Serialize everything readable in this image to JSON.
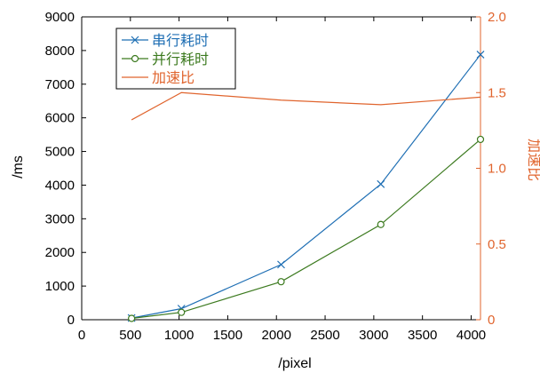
{
  "chart_data": {
    "type": "line",
    "title": "",
    "xlabel": "/pixel",
    "ylabel_left": "/ms",
    "ylabel_right": "加速比",
    "x_ticks": [
      0,
      500,
      1000,
      1500,
      2000,
      2500,
      3000,
      3500,
      4000
    ],
    "xlim": [
      0,
      4096
    ],
    "ylim_left": [
      0,
      9000
    ],
    "y_ticks_left": [
      0,
      1000,
      2000,
      3000,
      4000,
      5000,
      6000,
      7000,
      8000,
      9000
    ],
    "ylim_right": [
      0,
      2.0
    ],
    "y_ticks_right": [
      "0",
      "0.5",
      "1.0",
      "1.5",
      "2.0"
    ],
    "grid": false,
    "legend_position": "top-left",
    "colors": {
      "serial": "#1f6fb4",
      "parallel": "#3c7a1f",
      "speedup": "#e0642d",
      "axis": "#000000"
    },
    "series": [
      {
        "name": "串行耗时",
        "axis": "left",
        "marker": "x",
        "color": "#1f6fb4",
        "x": [
          512,
          1024,
          2048,
          3072,
          4096
        ],
        "values": [
          50,
          330,
          1640,
          4030,
          7880
        ]
      },
      {
        "name": "并行耗时",
        "axis": "left",
        "marker": "o",
        "color": "#3c7a1f",
        "x": [
          512,
          1024,
          2048,
          3072,
          4096
        ],
        "values": [
          40,
          220,
          1130,
          2830,
          5360
        ]
      },
      {
        "name": "加速比",
        "axis": "right",
        "marker": "none",
        "color": "#e0642d",
        "x": [
          512,
          1024,
          2048,
          3072,
          4096
        ],
        "values": [
          1.32,
          1.5,
          1.45,
          1.42,
          1.47
        ]
      }
    ]
  }
}
